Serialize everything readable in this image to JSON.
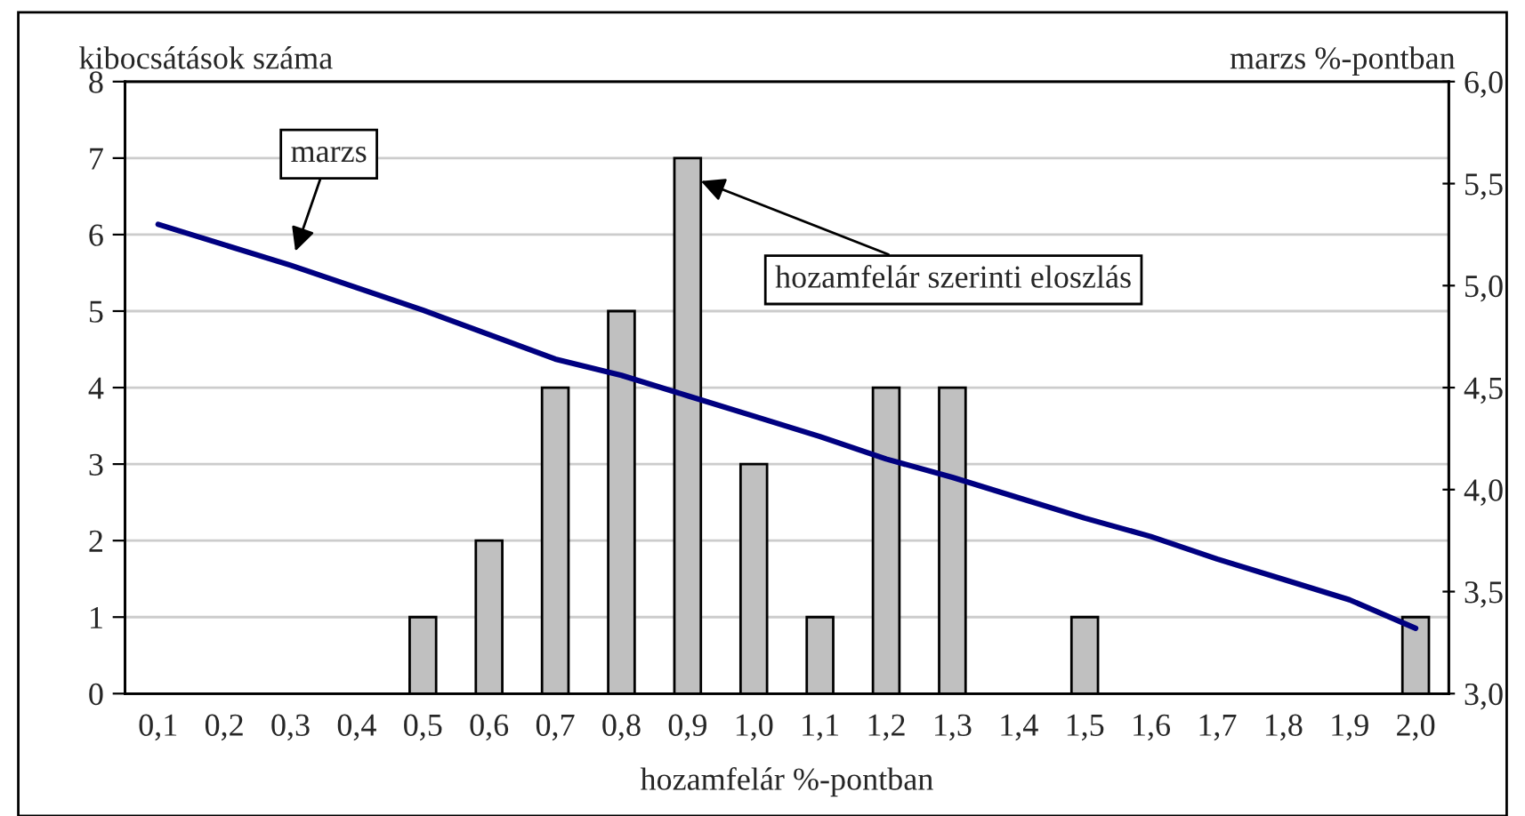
{
  "chart_data": {
    "type": "bar",
    "xlabel": "hozamfelár %-pontban",
    "ylabel": "kibocsátások száma",
    "y2label": "marzs %-pontban",
    "categories": [
      "0,1",
      "0,2",
      "0,3",
      "0,4",
      "0,5",
      "0,6",
      "0,7",
      "0,8",
      "0,9",
      "1,0",
      "1,1",
      "1,2",
      "1,3",
      "1,4",
      "1,5",
      "1,6",
      "1,7",
      "1,8",
      "1,9",
      "2,0"
    ],
    "series": [
      {
        "name": "hozamfelár szerinti eloszlás",
        "color": "#c0c0c0",
        "values": [
          0,
          0,
          0,
          0,
          1,
          2,
          4,
          5,
          7,
          3,
          1,
          4,
          4,
          0,
          1,
          0,
          0,
          0,
          0,
          1
        ]
      },
      {
        "name": "marzs",
        "type": "line",
        "axis": "y2",
        "color": "#000080",
        "marker": "none",
        "line_style": "solid",
        "values": [
          5.3,
          5.2,
          5.1,
          4.99,
          4.88,
          4.76,
          4.64,
          4.56,
          4.46,
          4.36,
          4.26,
          4.15,
          4.06,
          3.96,
          3.86,
          3.77,
          3.66,
          3.56,
          3.46,
          3.32
        ]
      }
    ],
    "ylim": [
      0,
      8
    ],
    "yticks": [
      0,
      1,
      2,
      3,
      4,
      5,
      6,
      7,
      8
    ],
    "y2lim": [
      3.0,
      6.0
    ],
    "y2ticks": [
      {
        "value": 3.0,
        "label": "3,0"
      },
      {
        "value": 3.5,
        "label": "3,5"
      },
      {
        "value": 4.0,
        "label": "4,0"
      },
      {
        "value": 4.5,
        "label": "4,5"
      },
      {
        "value": 5.0,
        "label": "5,0"
      },
      {
        "value": 5.5,
        "label": "5,5"
      },
      {
        "value": 6.0,
        "label": "6,0"
      }
    ],
    "grid": "y",
    "legend": false
  }
}
